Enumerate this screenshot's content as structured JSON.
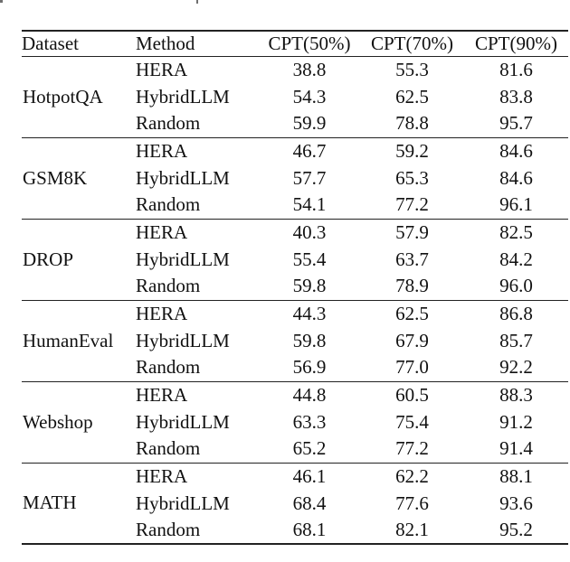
{
  "page": {
    "background_color": "#ffffff",
    "ink_color": "#111111",
    "rule_color": "#222222"
  },
  "table": {
    "columns": [
      "Dataset",
      "Method",
      "CPT(50%)",
      "CPT(70%)",
      "CPT(90%)"
    ],
    "groups": [
      {
        "dataset": "HotpotQA",
        "rows": [
          {
            "method": "HERA",
            "cpt50": "38.8",
            "cpt70": "55.3",
            "cpt90": "81.6"
          },
          {
            "method": "HybridLLM",
            "cpt50": "54.3",
            "cpt70": "62.5",
            "cpt90": "83.8"
          },
          {
            "method": "Random",
            "cpt50": "59.9",
            "cpt70": "78.8",
            "cpt90": "95.7"
          }
        ]
      },
      {
        "dataset": "GSM8K",
        "rows": [
          {
            "method": "HERA",
            "cpt50": "46.7",
            "cpt70": "59.2",
            "cpt90": "84.6"
          },
          {
            "method": "HybridLLM",
            "cpt50": "57.7",
            "cpt70": "65.3",
            "cpt90": "84.6"
          },
          {
            "method": "Random",
            "cpt50": "54.1",
            "cpt70": "77.2",
            "cpt90": "96.1"
          }
        ]
      },
      {
        "dataset": "DROP",
        "rows": [
          {
            "method": "HERA",
            "cpt50": "40.3",
            "cpt70": "57.9",
            "cpt90": "82.5"
          },
          {
            "method": "HybridLLM",
            "cpt50": "55.4",
            "cpt70": "63.7",
            "cpt90": "84.2"
          },
          {
            "method": "Random",
            "cpt50": "59.8",
            "cpt70": "78.9",
            "cpt90": "96.0"
          }
        ]
      },
      {
        "dataset": "HumanEval",
        "rows": [
          {
            "method": "HERA",
            "cpt50": "44.3",
            "cpt70": "62.5",
            "cpt90": "86.8"
          },
          {
            "method": "HybridLLM",
            "cpt50": "59.8",
            "cpt70": "67.9",
            "cpt90": "85.7"
          },
          {
            "method": "Random",
            "cpt50": "56.9",
            "cpt70": "77.0",
            "cpt90": "92.2"
          }
        ]
      },
      {
        "dataset": "Webshop",
        "rows": [
          {
            "method": "HERA",
            "cpt50": "44.8",
            "cpt70": "60.5",
            "cpt90": "88.3"
          },
          {
            "method": "HybridLLM",
            "cpt50": "63.3",
            "cpt70": "75.4",
            "cpt90": "91.2"
          },
          {
            "method": "Random",
            "cpt50": "65.2",
            "cpt70": "77.2",
            "cpt90": "91.4"
          }
        ]
      },
      {
        "dataset": "MATH",
        "rows": [
          {
            "method": "HERA",
            "cpt50": "46.1",
            "cpt70": "62.2",
            "cpt90": "88.1"
          },
          {
            "method": "HybridLLM",
            "cpt50": "68.4",
            "cpt70": "77.6",
            "cpt90": "93.6"
          },
          {
            "method": "Random",
            "cpt50": "68.1",
            "cpt70": "82.1",
            "cpt90": "95.2"
          }
        ]
      }
    ]
  }
}
